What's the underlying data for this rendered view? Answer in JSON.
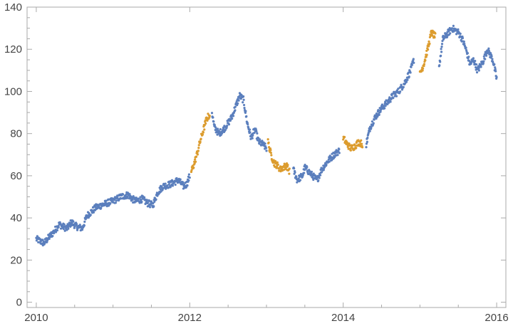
{
  "chart_data": {
    "type": "scatter",
    "title": "",
    "xlabel": "",
    "ylabel": "",
    "xlim": [
      2009.88,
      2016.12
    ],
    "ylim": [
      -2.5,
      140
    ],
    "x_ticks": [
      2010,
      2012,
      2014,
      2016
    ],
    "x_tick_labels": [
      "2010",
      "2012",
      "2014",
      "2016"
    ],
    "y_ticks": [
      0,
      20,
      40,
      60,
      80,
      100,
      120,
      140
    ],
    "y_tick_labels": [
      "0",
      "20",
      "40",
      "60",
      "80",
      "100",
      "120",
      "140"
    ],
    "grid": false,
    "legend": "none",
    "colors": {
      "base": "#5b7fbd",
      "highlight": "#dc9c2e",
      "frame": "#aaaaaa",
      "text": "#444444"
    },
    "series": [
      {
        "color": "#5b7fbd",
        "x": [
          2010.0,
          2010.05,
          2010.1,
          2010.17,
          2010.22,
          2010.3,
          2010.34,
          2010.4,
          2010.46,
          2010.52,
          2010.6,
          2010.66,
          2010.72,
          2010.78,
          2010.85,
          2010.92,
          2011.0,
          2011.1,
          2011.2,
          2011.25,
          2011.3,
          2011.38,
          2011.45,
          2011.52,
          2011.58,
          2011.65,
          2011.75,
          2011.85,
          2011.92,
          2011.96,
          2012.0,
          2012.29,
          2012.32,
          2012.38,
          2012.44,
          2012.5,
          2012.55,
          2012.6,
          2012.65,
          2012.7,
          2012.75,
          2012.8,
          2012.85,
          2012.9,
          2012.95,
          2013.0,
          2013.35,
          2013.4,
          2013.47,
          2013.5,
          2013.55,
          2013.6,
          2013.66,
          2013.72,
          2013.8,
          2013.88,
          2013.95,
          2014.3,
          2014.35,
          2014.42,
          2014.5,
          2014.58,
          2014.65,
          2014.72,
          2014.8,
          2014.88,
          2014.92,
          2015.25,
          2015.3,
          2015.35,
          2015.42,
          2015.5,
          2015.55,
          2015.6,
          2015.65,
          2015.7,
          2015.75,
          2015.82,
          2015.88,
          2015.95,
          2016.0
        ],
        "y": [
          30,
          29,
          28,
          31,
          33,
          37,
          36,
          35,
          38,
          36,
          35,
          41,
          43,
          45,
          46,
          47,
          48,
          50,
          51,
          49,
          48,
          49,
          47,
          46,
          52,
          55,
          56,
          58,
          55,
          56,
          60,
          90,
          83,
          80,
          82,
          85,
          88,
          93,
          98,
          96,
          85,
          78,
          82,
          76,
          75,
          73,
          63,
          58,
          60,
          64,
          62,
          60,
          58,
          63,
          67,
          70,
          72,
          75,
          83,
          88,
          92,
          95,
          98,
          100,
          104,
          110,
          115,
          112,
          125,
          127,
          130,
          128,
          125,
          120,
          113,
          115,
          110,
          114,
          120,
          115,
          106
        ]
      },
      {
        "color": "#dc9c2e",
        "x": [
          2012.02,
          2012.06,
          2012.1,
          2012.14,
          2012.18,
          2012.22,
          2012.26,
          2013.02,
          2013.06,
          2013.1,
          2013.14,
          2013.18,
          2013.22,
          2013.26,
          2013.3,
          2014.0,
          2014.05,
          2014.1,
          2014.15,
          2014.2,
          2014.25,
          2015.0,
          2015.05,
          2015.1,
          2015.15,
          2015.2
        ],
        "y": [
          62,
          66,
          71,
          77,
          82,
          87,
          89,
          76,
          70,
          66,
          65,
          63,
          64,
          65,
          62,
          78,
          75,
          73,
          74,
          76,
          75,
          108,
          113,
          120,
          128,
          126
        ]
      }
    ]
  }
}
